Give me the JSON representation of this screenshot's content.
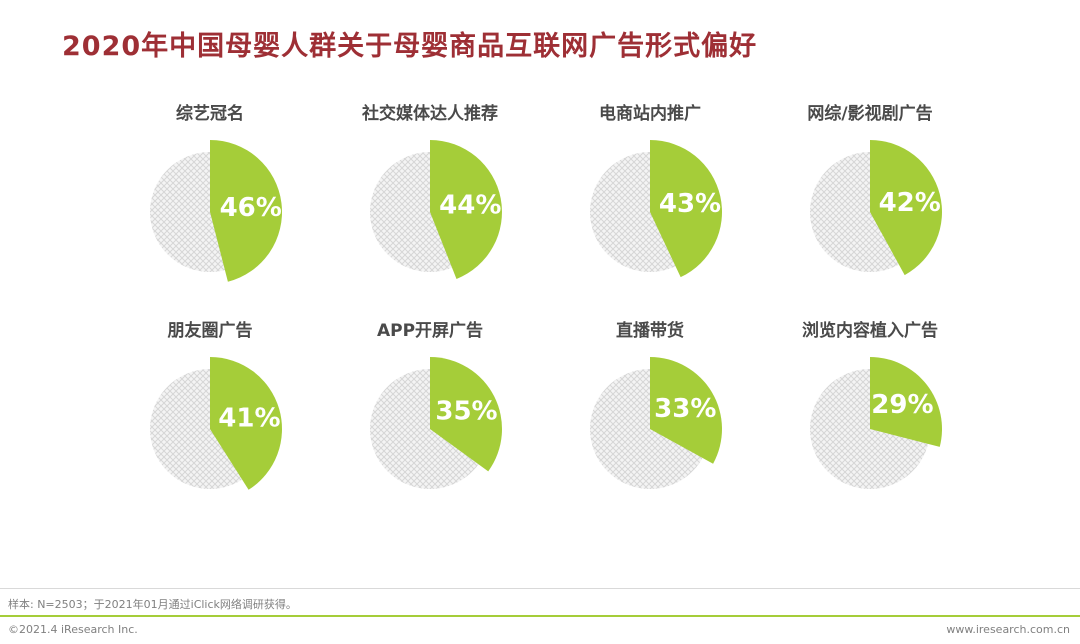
{
  "title": "2020年中国母婴人群关于母婴商品互联网广告形式偏好",
  "colors": {
    "title_red": "#9e2f35",
    "accent_green": "#a5cd39",
    "hatch_line": "#d6d6d6",
    "label_gray": "#4a4a4a",
    "footer_gray": "#808080"
  },
  "chart_data": {
    "type": "pie",
    "title": "2020年中国母婴人群关于母婴商品互联网广告形式偏好",
    "unit": "%",
    "layout": {
      "rows": 2,
      "cols": 4,
      "slice_start": "top",
      "direction": "clockwise",
      "legend": "none"
    },
    "items": [
      {
        "label": "综艺冠名",
        "value": 46,
        "display": "46%"
      },
      {
        "label": "社交媒体达人推荐",
        "value": 44,
        "display": "44%"
      },
      {
        "label": "电商站内推广",
        "value": 43,
        "display": "43%"
      },
      {
        "label": "网综/影视剧广告",
        "value": 42,
        "display": "42%"
      },
      {
        "label": "朋友圈广告",
        "value": 41,
        "display": "41%"
      },
      {
        "label": "APP开屏广告",
        "value": 35,
        "display": "35%"
      },
      {
        "label": "直播带货",
        "value": 33,
        "display": "33%"
      },
      {
        "label": "浏览内容植入广告",
        "value": 29,
        "display": "29%"
      }
    ]
  },
  "footer": {
    "sample_note": "样本: N=2503；于2021年01月通过iClick网络调研获得。",
    "copyright": "©2021.4 iResearch Inc.",
    "website": "www.iresearch.com.cn"
  }
}
